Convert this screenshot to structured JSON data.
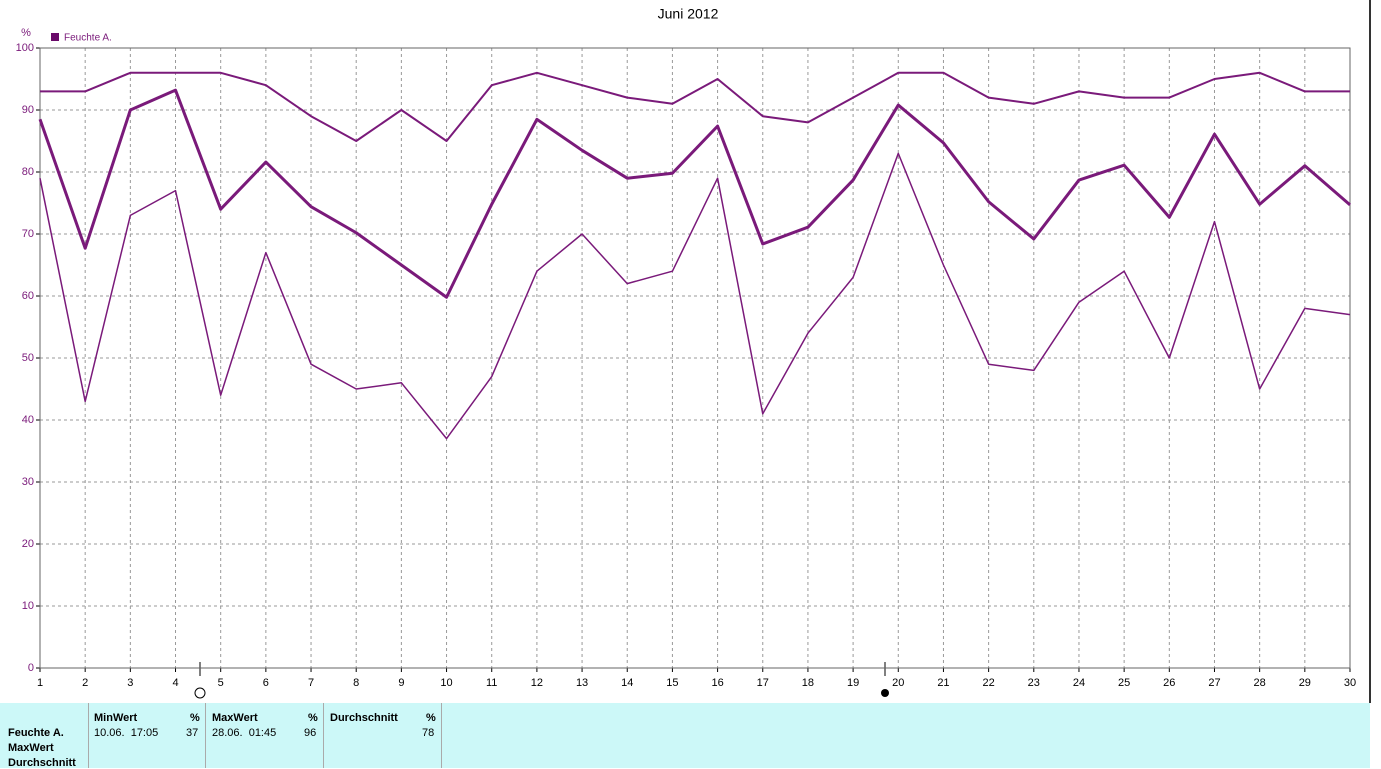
{
  "chart_data": {
    "type": "line",
    "title": "Juni 2012",
    "y_unit": "%",
    "legend": "Feuchte A.",
    "legend_color": "#6a0a6a",
    "x": [
      1,
      2,
      3,
      4,
      5,
      6,
      7,
      8,
      9,
      10,
      11,
      12,
      13,
      14,
      15,
      16,
      17,
      18,
      19,
      20,
      21,
      22,
      23,
      24,
      25,
      26,
      27,
      28,
      29,
      30
    ],
    "xlim": [
      1,
      30
    ],
    "xticks": [
      1,
      2,
      3,
      4,
      5,
      6,
      7,
      8,
      9,
      10,
      11,
      12,
      13,
      14,
      15,
      16,
      17,
      18,
      19,
      20,
      21,
      22,
      23,
      24,
      25,
      26,
      27,
      28,
      29,
      30
    ],
    "ylim": [
      0,
      100
    ],
    "yticks": [
      0,
      10,
      20,
      30,
      40,
      50,
      60,
      70,
      80,
      90,
      100
    ],
    "grid": true,
    "series": [
      {
        "color": "#7a1a7a",
        "width": 2,
        "values": [
          93,
          93,
          96,
          96,
          96,
          94,
          89,
          85,
          90,
          85,
          94,
          96,
          94,
          92,
          91,
          95,
          89,
          88,
          92,
          96,
          96,
          92,
          91,
          93,
          92,
          92,
          95,
          96,
          93,
          93
        ]
      },
      {
        "color": "#7a1a7a",
        "width": 3,
        "values": [
          88.5,
          67.7,
          90,
          93.2,
          74,
          81.6,
          74.4,
          70.2,
          65,
          59.8,
          74.8,
          88.5,
          83.5,
          79,
          79.8,
          87.4,
          68.4,
          71.1,
          78.7,
          90.8,
          84.7,
          75.2,
          69.2,
          78.7,
          81.1,
          72.7,
          86.1,
          74.8,
          81,
          74.7
        ]
      },
      {
        "color": "#7a1a7a",
        "width": 1.5,
        "values": [
          79,
          43,
          73,
          77,
          44,
          67,
          49,
          45,
          46,
          37,
          47,
          64,
          70,
          62,
          64,
          79,
          41,
          54,
          63,
          83,
          65,
          49,
          48,
          59,
          64,
          50,
          72,
          45,
          58,
          57
        ]
      }
    ]
  },
  "stats": {
    "row_labels": [
      "Feuchte A.",
      "MaxWert",
      "Durchschnitt"
    ],
    "columns": [
      {
        "header": "MinWert",
        "unit": "%",
        "time": "10.06.  17:05",
        "value": 37
      },
      {
        "header": "MaxWert",
        "unit": "%",
        "time": "28.06.  01:45",
        "value": 96
      },
      {
        "header": "Durchschnitt",
        "unit": "%",
        "value": 78
      }
    ]
  }
}
